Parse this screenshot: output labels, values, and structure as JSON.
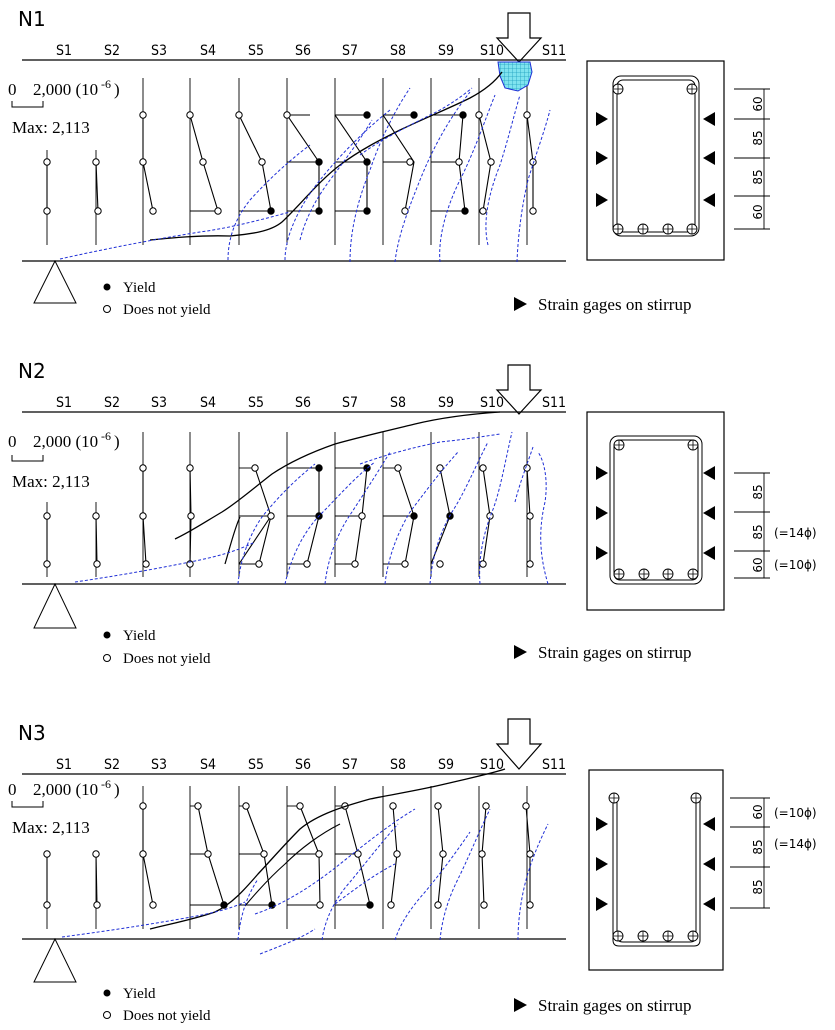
{
  "figure": {
    "panels": [
      {
        "id": "N1",
        "label": "N1",
        "stirrups": [
          "S1",
          "S2",
          "S3",
          "S4",
          "S5",
          "S6",
          "S7",
          "S8",
          "S9",
          "S10",
          "S11"
        ],
        "scale_zero": "0",
        "scale_value": "2,000 (10",
        "scale_exp": "-6",
        "scale_close": ")",
        "max_label": "Max: 2,113",
        "legend_yield": "Yield",
        "legend_not_yield": "Does not  yield",
        "gages_note": "Strain gages on stirrup",
        "dims": [
          "60",
          "85",
          "85",
          "60"
        ],
        "dim_notes": [
          "",
          "",
          "",
          ""
        ]
      },
      {
        "id": "N2",
        "label": "N2",
        "stirrups": [
          "S1",
          "S2",
          "S3",
          "S4",
          "S5",
          "S6",
          "S7",
          "S8",
          "S9",
          "S10",
          "S11"
        ],
        "scale_zero": "0",
        "scale_value": "2,000 (10",
        "scale_exp": "-6",
        "scale_close": ")",
        "max_label": "Max: 2,113",
        "legend_yield": "Yield",
        "legend_not_yield": "Does not  yield",
        "gages_note": "Strain gages on stirrup",
        "dims": [
          "85",
          "85",
          "60"
        ],
        "dim_notes": [
          "",
          "(=14ϕ)",
          "(=10ϕ)"
        ]
      },
      {
        "id": "N3",
        "label": "N3",
        "stirrups": [
          "S1",
          "S2",
          "S3",
          "S4",
          "S5",
          "S6",
          "S7",
          "S8",
          "S9",
          "S10",
          "S11"
        ],
        "scale_zero": "0",
        "scale_value": "2,000 (10",
        "scale_exp": "-6",
        "scale_close": ")",
        "max_label": "Max: 2,113",
        "legend_yield": "Yield",
        "legend_not_yield": "Does not  yield",
        "gages_note": "Strain gages on stirrup",
        "dims": [
          "60",
          "85",
          "85"
        ],
        "dim_notes": [
          "(=10ϕ)",
          "(=14ϕ)",
          ""
        ]
      }
    ],
    "colors": {
      "ink": "#000000",
      "crack_blue": "#1f2fd6",
      "damage_fill": "#5ad6e6",
      "damage_edge": "#1f2fd6"
    }
  }
}
